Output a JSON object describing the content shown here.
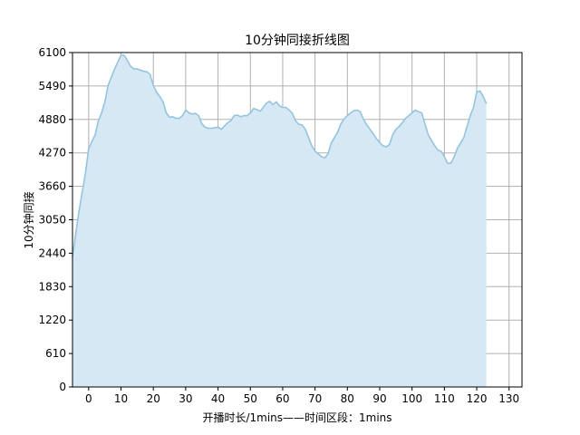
{
  "chart_data": {
    "type": "area",
    "title": "10分钟同接折线图",
    "xlabel": "开播时长/1mins——时间区段：1mins",
    "ylabel": "10分钟同接",
    "xlim": [
      -5,
      134
    ],
    "ylim": [
      0,
      6100
    ],
    "xticks": [
      0,
      10,
      20,
      30,
      40,
      50,
      60,
      70,
      80,
      90,
      100,
      110,
      120,
      130
    ],
    "yticks": [
      0,
      610,
      1220,
      1830,
      2440,
      3050,
      3660,
      4270,
      4880,
      5490,
      6100
    ],
    "grid": true,
    "colors": {
      "line": "#94c4df",
      "fill": "#d6e8f3",
      "grid": "#b0b0b0"
    },
    "series": [
      {
        "x": [
          -5,
          -3,
          -1,
          0,
          2,
          3,
          4,
          5,
          6,
          8,
          10,
          11,
          12,
          13,
          14,
          15,
          16,
          17,
          18,
          19,
          20,
          21,
          22,
          23,
          24,
          25,
          26,
          27,
          28,
          29,
          30,
          31,
          32,
          33,
          34,
          35,
          36,
          37,
          38,
          39,
          40,
          41,
          42,
          43,
          44,
          45,
          46,
          47,
          48,
          49,
          50,
          51,
          52,
          53,
          54,
          55,
          56,
          57,
          58,
          59,
          60,
          61,
          62,
          63,
          64,
          65,
          66,
          67,
          68,
          69,
          70,
          71,
          72,
          73,
          74,
          75,
          76,
          77,
          78,
          79,
          80,
          81,
          82,
          83,
          84,
          85,
          86,
          87,
          88,
          89,
          90,
          91,
          92,
          93,
          94,
          95,
          96,
          97,
          98,
          99,
          100,
          101,
          102,
          103,
          104,
          105,
          106,
          107,
          108,
          109,
          110,
          111,
          112,
          113,
          114,
          115,
          116,
          117,
          118,
          119,
          120,
          121,
          122,
          123
        ],
        "values": [
          2380,
          3200,
          3900,
          4350,
          4600,
          4850,
          5000,
          5200,
          5500,
          5800,
          6050,
          6050,
          5950,
          5850,
          5800,
          5800,
          5780,
          5760,
          5750,
          5700,
          5500,
          5380,
          5300,
          5200,
          5000,
          4920,
          4930,
          4900,
          4900,
          4950,
          5050,
          5000,
          4980,
          4990,
          4950,
          4800,
          4740,
          4720,
          4720,
          4730,
          4740,
          4700,
          4760,
          4820,
          4860,
          4950,
          4960,
          4930,
          4950,
          4950,
          5000,
          5080,
          5060,
          5030,
          5100,
          5180,
          5210,
          5150,
          5200,
          5130,
          5100,
          5100,
          5050,
          4990,
          4850,
          4790,
          4780,
          4700,
          4550,
          4400,
          4300,
          4250,
          4200,
          4180,
          4250,
          4450,
          4550,
          4650,
          4800,
          4890,
          4950,
          5000,
          5040,
          5050,
          5020,
          4880,
          4780,
          4700,
          4620,
          4530,
          4460,
          4400,
          4380,
          4420,
          4600,
          4700,
          4750,
          4820,
          4900,
          4950,
          5000,
          5050,
          5020,
          5000,
          4800,
          4600,
          4500,
          4400,
          4320,
          4300,
          4200,
          4080,
          4080,
          4200,
          4350,
          4450,
          4550,
          4750,
          4950,
          5100,
          5380,
          5400,
          5300,
          5170
        ]
      }
    ]
  }
}
